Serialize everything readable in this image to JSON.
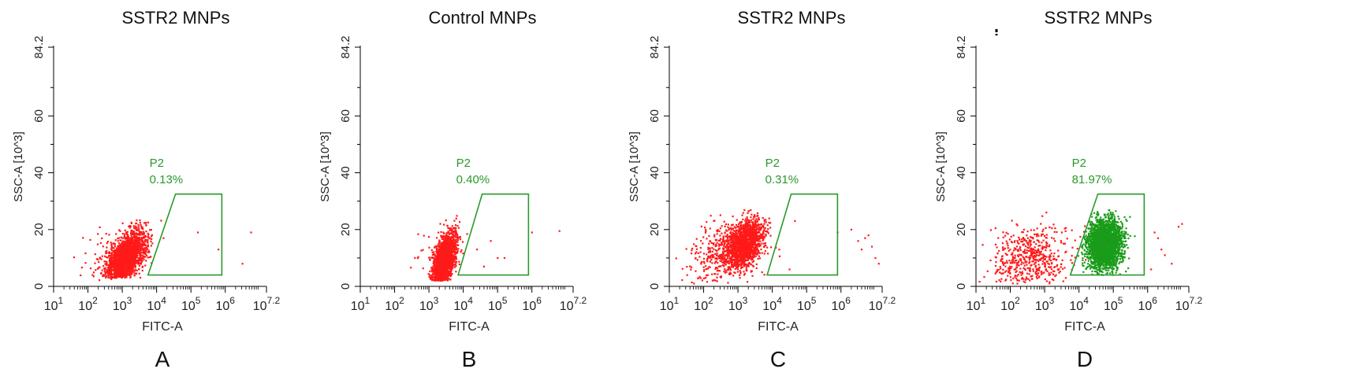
{
  "colors": {
    "negative_event": "#ff1a1a",
    "gated_event": "#1a9c1a",
    "gate": "#2a9a2a",
    "axis": "#000000"
  },
  "chart_data": [
    {
      "panel_label": "A",
      "type": "scatter",
      "title": "SSTR2 MNPs",
      "xlabel": "FITC-A",
      "ylabel": "SSC-A [10^3]",
      "xscale": "log",
      "xlim": [
        1,
        7.2
      ],
      "ylim": [
        0,
        84.2
      ],
      "x_ticks": [
        "10^1",
        "10^2",
        "10^3",
        "10^4",
        "10^5",
        "10^6",
        "10^7.2"
      ],
      "y_ticks": [
        "0",
        "20",
        "40",
        "60",
        "84.2"
      ],
      "grid": false,
      "gate": {
        "name": "P2",
        "percent": "0.13%",
        "polygon": [
          [
            3.75,
            4
          ],
          [
            4.55,
            32.5
          ],
          [
            5.9,
            32.5
          ],
          [
            5.9,
            4
          ]
        ]
      },
      "populations": [
        {
          "name": "main",
          "center": [
            3.1,
            10
          ],
          "x_spread": 0.3,
          "y_spread": 4,
          "slope": 9,
          "count": 2000,
          "ymin": 3,
          "ymax": 27,
          "xmax": 3.9,
          "gated": false
        },
        {
          "name": "scatter",
          "center": [
            2.6,
            10
          ],
          "x_spread": 0.5,
          "y_spread": 5,
          "slope": 4,
          "count": 70,
          "ymin": 2,
          "ymax": 28,
          "gated": false
        }
      ],
      "extra_points": [
        [
          5.2,
          19
        ],
        [
          5.8,
          13
        ],
        [
          6.5,
          8
        ],
        [
          6.75,
          19
        ],
        [
          4.2,
          17
        ]
      ]
    },
    {
      "panel_label": "B",
      "type": "scatter",
      "title": "Control MNPs",
      "xlabel": "FITC-A",
      "ylabel": "SSC-A [10^3]",
      "xscale": "log",
      "xlim": [
        1,
        7.2
      ],
      "ylim": [
        0,
        84.2
      ],
      "x_ticks": [
        "10^1",
        "10^2",
        "10^3",
        "10^4",
        "10^5",
        "10^6",
        "10^7.2"
      ],
      "y_ticks": [
        "0",
        "20",
        "40",
        "60",
        "84.2"
      ],
      "grid": false,
      "gate": {
        "name": "P2",
        "percent": "0.40%",
        "polygon": [
          [
            3.85,
            4
          ],
          [
            4.55,
            32.5
          ],
          [
            5.9,
            32.5
          ],
          [
            5.9,
            4
          ]
        ]
      },
      "populations": [
        {
          "name": "main",
          "center": [
            3.45,
            9
          ],
          "x_spread": 0.17,
          "y_spread": 4,
          "slope": 15,
          "count": 2000,
          "ymin": 2,
          "ymax": 27,
          "xmax": 4.25,
          "gated": false
        },
        {
          "name": "scatter",
          "center": [
            3.2,
            12
          ],
          "x_spread": 0.35,
          "y_spread": 5,
          "slope": 5,
          "count": 40,
          "ymin": 3,
          "ymax": 27,
          "gated": false
        }
      ],
      "extra_points": [
        [
          4.4,
          13
        ],
        [
          4.8,
          16
        ],
        [
          5.0,
          10
        ],
        [
          5.2,
          10
        ],
        [
          6.0,
          19
        ],
        [
          6.8,
          19.5
        ],
        [
          4.6,
          7
        ]
      ]
    },
    {
      "panel_label": "C",
      "type": "scatter",
      "title": "SSTR2 MNPs",
      "xlabel": "FITC-A",
      "ylabel": "SSC-A [10^3]",
      "xscale": "log",
      "xlim": [
        1,
        7.2
      ],
      "ylim": [
        0,
        84.2
      ],
      "x_ticks": [
        "10^1",
        "10^2",
        "10^3",
        "10^4",
        "10^5",
        "10^6",
        "10^7.2"
      ],
      "y_ticks": [
        "0",
        "20",
        "40",
        "60",
        "84.2"
      ],
      "grid": false,
      "gate": {
        "name": "P2",
        "percent": "0.31%",
        "polygon": [
          [
            3.85,
            4
          ],
          [
            4.55,
            32.5
          ],
          [
            5.9,
            32.5
          ],
          [
            5.9,
            4
          ]
        ]
      },
      "populations": [
        {
          "name": "main",
          "center": [
            3.2,
            15
          ],
          "x_spread": 0.28,
          "y_spread": 4,
          "slope": 7,
          "count": 1300,
          "ymin": 4,
          "ymax": 27,
          "xmax": 3.95,
          "gated": false
        },
        {
          "name": "scatter",
          "center": [
            2.7,
            12
          ],
          "x_spread": 0.55,
          "y_spread": 5.5,
          "slope": 3,
          "count": 500,
          "ymin": 1,
          "ymax": 28,
          "gated": false
        }
      ],
      "extra_points": [
        [
          6.5,
          16
        ],
        [
          6.6,
          13
        ],
        [
          6.7,
          17
        ],
        [
          6.8,
          18
        ],
        [
          6.9,
          14
        ],
        [
          7.0,
          10
        ],
        [
          7.1,
          8
        ],
        [
          6.3,
          20
        ],
        [
          5.9,
          19
        ],
        [
          4.5,
          6
        ],
        [
          4.2,
          13
        ],
        [
          3.7,
          5
        ]
      ]
    },
    {
      "panel_label": "D",
      "type": "scatter",
      "title": "SSTR2 MNPs",
      "xlabel": "FITC-A",
      "ylabel": "SSC-A [10^3]",
      "xscale": "log",
      "xlim": [
        1,
        7.2
      ],
      "ylim": [
        0,
        84.2
      ],
      "x_ticks": [
        "10^1",
        "10^2",
        "10^3",
        "10^4",
        "10^5",
        "10^6",
        "10^7.2"
      ],
      "y_ticks": [
        "0",
        "20",
        "40",
        "60",
        "84.2"
      ],
      "grid": false,
      "gate": {
        "name": "P2",
        "percent": "81.97%",
        "polygon": [
          [
            3.75,
            4
          ],
          [
            4.55,
            32.5
          ],
          [
            5.9,
            32.5
          ],
          [
            5.9,
            4
          ]
        ]
      },
      "populations": [
        {
          "name": "gated",
          "center": [
            4.75,
            15
          ],
          "x_spread": 0.25,
          "y_spread": 4.5,
          "slope": 1.5,
          "count": 2400,
          "ymin": 4,
          "ymax": 27,
          "gated": true
        },
        {
          "name": "negative",
          "center": [
            2.55,
            10
          ],
          "x_spread": 0.55,
          "y_spread": 5.5,
          "slope": 1,
          "count": 550,
          "ymin": 1,
          "ymax": 27,
          "gated": false
        }
      ],
      "extra_points": [
        [
          6.2,
          19
        ],
        [
          6.4,
          13
        ],
        [
          6.5,
          11
        ],
        [
          6.7,
          8
        ],
        [
          6.9,
          21
        ],
        [
          7.0,
          22
        ],
        [
          6.1,
          6
        ],
        [
          6.3,
          17
        ],
        [
          3.6,
          12
        ],
        [
          3.5,
          19
        ],
        [
          3.3,
          16
        ]
      ]
    }
  ]
}
